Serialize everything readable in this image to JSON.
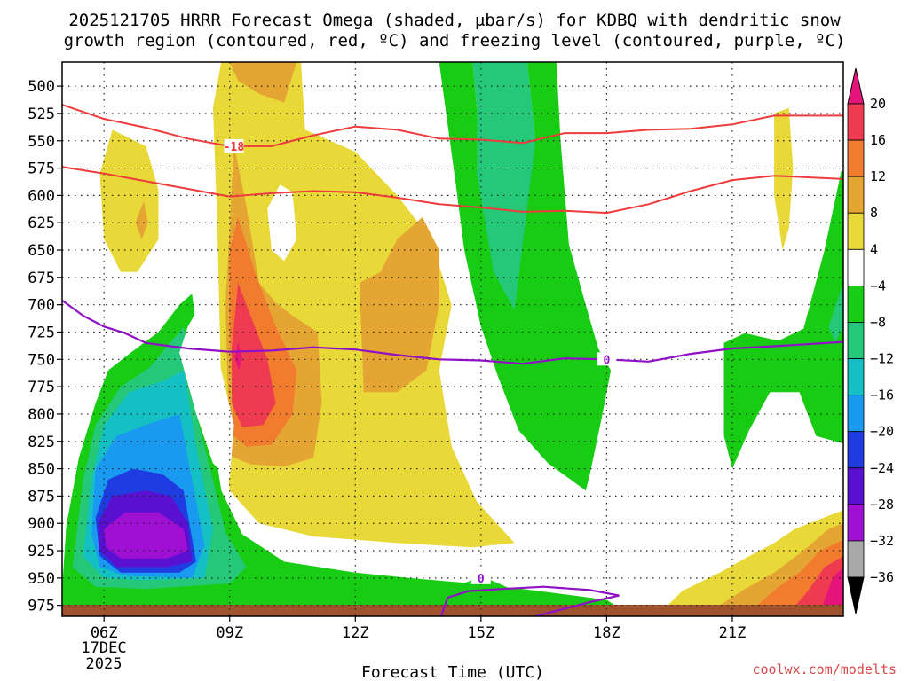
{
  "chart_data": {
    "type": "heatmap",
    "title_line1": "2025121705 HRRR Forecast Omega (shaded, μbar/s) for KDBQ with dendritic snow",
    "title_line2": "growth region (contoured, red, ºC) and freezing level (contoured, purple, ºC)",
    "xlabel": "Forecast Time (UTC)",
    "credit": "coolwx.com/modelts",
    "x_ticks": [
      "06Z",
      "09Z",
      "12Z",
      "15Z",
      "18Z",
      "21Z"
    ],
    "x_date": [
      "17DEC",
      "2025"
    ],
    "y_ticks": [
      "500",
      "525",
      "550",
      "575",
      "600",
      "625",
      "650",
      "675",
      "700",
      "725",
      "750",
      "775",
      "800",
      "825",
      "850",
      "875",
      "900",
      "925",
      "950",
      "975"
    ],
    "ylim": [
      478,
      985
    ],
    "xlim": [
      5.0,
      23.65
    ],
    "colorbar": {
      "labels": [
        "20",
        "16",
        "12",
        "8",
        "4",
        "−4",
        "−8",
        "−12",
        "−16",
        "−20",
        "−24",
        "−28",
        "−32",
        "−36"
      ],
      "colors": [
        "#ee3b4f",
        "#f27c2e",
        "#e5a533",
        "#e8d838",
        "#ffffff",
        "#18cc14",
        "#24c878",
        "#14c0c4",
        "#199af0",
        "#1e3ce0",
        "#5a10d0",
        "#9f10d2",
        "#a8a8a8"
      ],
      "top_color": "#e5147a",
      "bottom_color": "#000000"
    },
    "shading_colors": {
      "yellow": "#e8d838",
      "gold": "#e5a533",
      "orange": "#f27c2e",
      "red": "#ee3b4f",
      "magenta": "#e5147a",
      "green": "#18cc14",
      "teal": "#24c878",
      "cyan": "#14c0c4",
      "blue": "#199af0",
      "darkblue": "#1e3ce0",
      "indigo": "#5a10d0",
      "purple": "#9f10d2",
      "ground": "#a0522d"
    },
    "contour_colors": {
      "dgz": "#ee3b3b",
      "freezing": "#9010c8"
    },
    "contour_labels": {
      "dgz_upper": "-18",
      "freezing": "0",
      "freezing_low": "0"
    },
    "series": [
      {
        "name": "dgz_-18C",
        "x": [
          5.0,
          6.0,
          7.0,
          8.0,
          9.0,
          10.0,
          11.0,
          12.0,
          13.0,
          14.0,
          15.0,
          16.0,
          17.0,
          18.0,
          19.0,
          20.0,
          21.0,
          22.0,
          23.65
        ],
        "y": [
          517,
          530,
          538,
          548,
          555,
          555,
          545,
          537,
          540,
          548,
          549,
          552,
          543,
          543,
          540,
          539,
          535,
          527,
          527
        ]
      },
      {
        "name": "dgz_-12C",
        "x": [
          5.0,
          6.0,
          7.0,
          8.0,
          9.0,
          10.0,
          11.0,
          12.0,
          13.0,
          14.0,
          15.0,
          16.0,
          17.0,
          18.0,
          19.0,
          20.0,
          21.0,
          22.0,
          23.65
        ],
        "y": [
          574,
          580,
          587,
          594,
          601,
          598,
          596,
          597,
          602,
          608,
          611,
          615,
          614,
          616,
          608,
          596,
          586,
          582,
          585
        ]
      },
      {
        "name": "freezing_0C",
        "x": [
          5.0,
          5.5,
          6.0,
          6.5,
          7.0,
          8.0,
          9.0,
          10.0,
          11.0,
          12.0,
          13.0,
          14.0,
          15.0,
          16.0,
          17.0,
          18.0,
          19.0,
          20.0,
          21.0,
          22.0,
          23.65
        ],
        "y": [
          696,
          710,
          720,
          726,
          735,
          740,
          743,
          742,
          739,
          741,
          746,
          750,
          751,
          754,
          749,
          750,
          752,
          745,
          740,
          738,
          734
        ]
      }
    ]
  }
}
